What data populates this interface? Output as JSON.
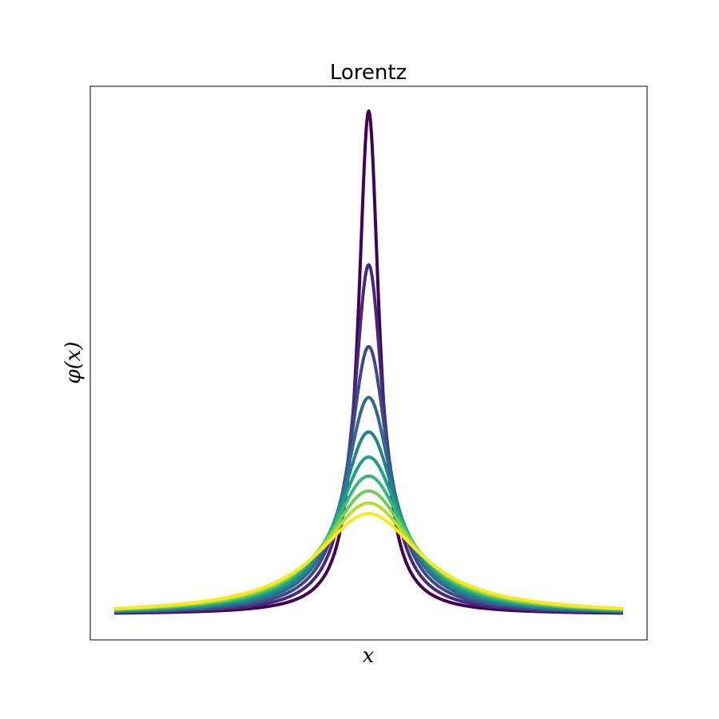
{
  "chart_data": {
    "type": "line",
    "title": "Lorentz",
    "xlabel": "x",
    "ylabel": "φ(x)",
    "xlim": [
      -10,
      10
    ],
    "ylim": [
      0,
      1.0
    ],
    "x_ticks_shown": false,
    "y_ticks_shown": false,
    "grid": false,
    "legend": "none",
    "colormap": "viridis",
    "series": [
      {
        "gamma": 0.5,
        "color": "#440154"
      },
      {
        "gamma": 0.72,
        "color": "#482878"
      },
      {
        "gamma": 0.94,
        "color": "#3e4989"
      },
      {
        "gamma": 1.16,
        "color": "#31688e"
      },
      {
        "gamma": 1.38,
        "color": "#26828e"
      },
      {
        "gamma": 1.6,
        "color": "#1f9e89"
      },
      {
        "gamma": 1.82,
        "color": "#35b779"
      },
      {
        "gamma": 2.04,
        "color": "#6ece58"
      },
      {
        "gamma": 2.26,
        "color": "#b5de2b"
      },
      {
        "gamma": 2.5,
        "color": "#fde725"
      }
    ]
  }
}
